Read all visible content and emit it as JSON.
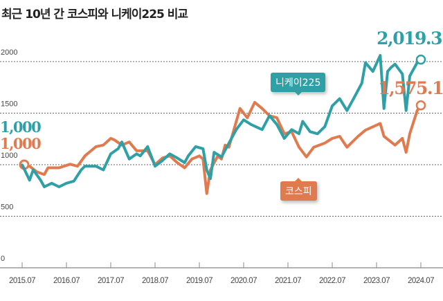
{
  "chart_data": {
    "type": "line",
    "title": "최근 10년 간 코스피와 니케이225 비교",
    "xlabel": "",
    "ylabel": "",
    "ylim": [
      0,
      2000
    ],
    "yticks": [
      "0",
      "500",
      "1000",
      "1500",
      "2000"
    ],
    "xticks": [
      "2015.07",
      "2016.07",
      "2017.07",
      "2018.07",
      "2019.07",
      "2020.07",
      "2021.07",
      "2022.07",
      "2023.07",
      "2024.07"
    ],
    "grid": "horizontal dotted",
    "colors": {
      "nikkei": "#2fa0a6",
      "kospi": "#e07a4f"
    },
    "series": [
      {
        "name": "니케이225",
        "start_label": "1,000",
        "end_label": "2,019.3",
        "points": [
          [
            "2015-07",
            1000
          ],
          [
            "2015-09",
            850
          ],
          [
            "2015-10",
            950
          ],
          [
            "2015-12",
            850
          ],
          [
            "2016-01",
            785
          ],
          [
            "2016-03",
            820
          ],
          [
            "2016-05",
            785
          ],
          [
            "2016-07",
            820
          ],
          [
            "2016-09",
            840
          ],
          [
            "2016-11",
            950
          ],
          [
            "2016-12",
            985
          ],
          [
            "2017-03",
            985
          ],
          [
            "2017-05",
            950
          ],
          [
            "2017-07",
            1105
          ],
          [
            "2017-09",
            1155
          ],
          [
            "2017-10",
            1220
          ],
          [
            "2017-12",
            1055
          ],
          [
            "2018-02",
            1105
          ],
          [
            "2018-03",
            1085
          ],
          [
            "2018-05",
            1175
          ],
          [
            "2018-07",
            985
          ],
          [
            "2018-09",
            1040
          ],
          [
            "2018-11",
            1105
          ],
          [
            "2019-01",
            1065
          ],
          [
            "2019-03",
            1020
          ],
          [
            "2019-04",
            1085
          ],
          [
            "2019-06",
            1175
          ],
          [
            "2019-08",
            1155
          ],
          [
            "2019-09",
            950
          ],
          [
            "2019-10",
            865
          ],
          [
            "2019-11",
            1120
          ],
          [
            "2020-01",
            1075
          ],
          [
            "2020-05",
            1340
          ],
          [
            "2020-07",
            1435
          ],
          [
            "2020-09",
            1390
          ],
          [
            "2020-12",
            1340
          ],
          [
            "2021-02",
            1475
          ],
          [
            "2021-04",
            1390
          ],
          [
            "2021-06",
            1255
          ],
          [
            "2021-08",
            1340
          ],
          [
            "2021-10",
            1300
          ],
          [
            "2021-11",
            1420
          ],
          [
            "2022-01",
            1320
          ],
          [
            "2022-03",
            1300
          ],
          [
            "2022-05",
            1370
          ],
          [
            "2022-07",
            1570
          ],
          [
            "2022-09",
            1640
          ],
          [
            "2022-11",
            1525
          ],
          [
            "2023-01",
            1655
          ],
          [
            "2023-03",
            1790
          ],
          [
            "2023-04",
            1990
          ],
          [
            "2023-06",
            1905
          ],
          [
            "2023-08",
            2060
          ],
          [
            "2023-09",
            1545
          ],
          [
            "2023-10",
            1905
          ],
          [
            "2023-11",
            1945
          ],
          [
            "2023-12",
            1975
          ],
          [
            "2024-02",
            1880
          ],
          [
            "2024-03",
            1525
          ],
          [
            "2024-04",
            1860
          ],
          [
            "2024-06",
            1990
          ],
          [
            "2024-07",
            2019.3
          ]
        ]
      },
      {
        "name": "코스피",
        "start_label": "1,000",
        "end_label": "1,575.1",
        "points": [
          [
            "2015-07",
            1000
          ],
          [
            "2015-09",
            985
          ],
          [
            "2015-11",
            930
          ],
          [
            "2016-01",
            905
          ],
          [
            "2016-02",
            970
          ],
          [
            "2016-05",
            970
          ],
          [
            "2016-08",
            1005
          ],
          [
            "2016-10",
            985
          ],
          [
            "2016-12",
            1085
          ],
          [
            "2017-03",
            1175
          ],
          [
            "2017-05",
            1190
          ],
          [
            "2017-07",
            1255
          ],
          [
            "2017-08",
            1240
          ],
          [
            "2017-10",
            1190
          ],
          [
            "2017-12",
            1220
          ],
          [
            "2018-02",
            1135
          ],
          [
            "2018-05",
            1135
          ],
          [
            "2018-07",
            1000
          ],
          [
            "2018-09",
            1065
          ],
          [
            "2018-11",
            1085
          ],
          [
            "2019-01",
            1020
          ],
          [
            "2019-03",
            970
          ],
          [
            "2019-05",
            1055
          ],
          [
            "2019-07",
            1085
          ],
          [
            "2019-08",
            1055
          ],
          [
            "2019-09",
            720
          ],
          [
            "2019-10",
            950
          ],
          [
            "2019-12",
            1085
          ],
          [
            "2020-01",
            1055
          ],
          [
            "2020-02",
            1190
          ],
          [
            "2020-03",
            1170
          ],
          [
            "2020-06",
            1545
          ],
          [
            "2020-08",
            1455
          ],
          [
            "2020-10",
            1605
          ],
          [
            "2020-12",
            1545
          ],
          [
            "2021-02",
            1475
          ],
          [
            "2021-04",
            1455
          ],
          [
            "2021-06",
            1300
          ],
          [
            "2021-08",
            1320
          ],
          [
            "2021-10",
            1170
          ],
          [
            "2021-12",
            1075
          ],
          [
            "2022-02",
            1170
          ],
          [
            "2022-05",
            1210
          ],
          [
            "2022-07",
            1255
          ],
          [
            "2022-09",
            1275
          ],
          [
            "2022-11",
            1170
          ],
          [
            "2023-02",
            1275
          ],
          [
            "2023-04",
            1335
          ],
          [
            "2023-08",
            1400
          ],
          [
            "2023-09",
            1275
          ],
          [
            "2023-12",
            1190
          ],
          [
            "2024-02",
            1255
          ],
          [
            "2024-03",
            1120
          ],
          [
            "2024-04",
            1300
          ],
          [
            "2024-06",
            1525
          ],
          [
            "2024-07",
            1575.1
          ]
        ]
      }
    ]
  }
}
